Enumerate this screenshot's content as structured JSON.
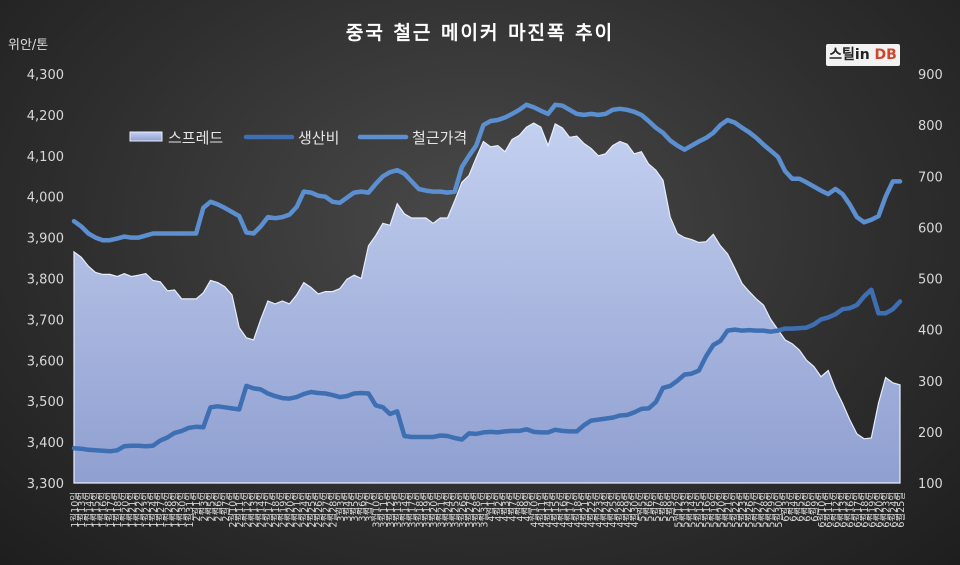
{
  "chart_data": {
    "type": "line",
    "title": "중국 철근 메이커 마진폭 추이",
    "ylabel": "위안/톤",
    "logo": {
      "text1": "스틸in ",
      "text2": "DB"
    },
    "y_left": {
      "min": 3300,
      "max": 4300,
      "step": 100
    },
    "y_right": {
      "min": 100,
      "max": 900,
      "step": 100
    },
    "legend_position": "upper-left",
    "grid": false,
    "colors": {
      "spread": "#aab9e3",
      "cost": "#3f6fb3",
      "price": "#5b8fd0",
      "text": "#d8d8d8"
    },
    "x": [
      "1월10일",
      "1월13일",
      "1월14일",
      "1월15일",
      "1월16일",
      "1월17일",
      "1월18일",
      "1월20일",
      "1월21일",
      "1월22일",
      "1월23일",
      "1월24일",
      "1월27일",
      "1월28일",
      "1월29일",
      "1월30일",
      "1월31일",
      "2월1일",
      "2월3일",
      "2월5일",
      "2월6일",
      "2월7일",
      "2월10일",
      "2월11일",
      "2월12일",
      "2월13일",
      "2월14일",
      "2월17일",
      "2월18일",
      "2월19일",
      "2월20일",
      "2월21일",
      "2월24일",
      "2월25일",
      "2월26일",
      "2월27일",
      "2월28일",
      "3월3일",
      "3월4일",
      "3월5일",
      "3월6일",
      "3월7일",
      "3월10일",
      "3월11일",
      "3월12일",
      "3월13일",
      "3월14일",
      "3월17일",
      "3월18일",
      "3월19일",
      "3월20일",
      "3월21일",
      "3월24일",
      "3월25일",
      "3월26일",
      "3월27일",
      "3월28일",
      "3월31일",
      "4월1일",
      "4월2일",
      "4월3일",
      "4월7일",
      "4월8일",
      "4월9일",
      "4월10일",
      "4월11일",
      "4월14일",
      "4월15일",
      "4월16일",
      "4월17일",
      "4월18일",
      "4월21일",
      "4월22일",
      "4월23일",
      "4월24일",
      "4월25일",
      "4월28일",
      "4월29일",
      "4월30일",
      "5월5일",
      "5월6일",
      "5월7일",
      "5월8일",
      "5월9일",
      "5월12일",
      "5월13일",
      "5월14일",
      "5월15일",
      "5월16일",
      "5월19일",
      "5월20일",
      "5월21일",
      "5월22일",
      "5월23일",
      "5월26일",
      "5월27일",
      "5월28일",
      "5월29일",
      "5월30일",
      "6월3일",
      "6월4일",
      "6월5일",
      "6월6일",
      "6월9일",
      "6월10일",
      "6월11일",
      "6월12일",
      "6월13일",
      "6월16일",
      "6월17일",
      "6월18일",
      "6월19일",
      "6월20일",
      "6월23일",
      "6월24일",
      "6월25일"
    ],
    "series": [
      {
        "name": "스프레드",
        "axis": "left",
        "style": "area",
        "values": [
          3865,
          3852,
          3830,
          3815,
          3810,
          3810,
          3805,
          3812,
          3805,
          3808,
          3812,
          3795,
          3792,
          3770,
          3772,
          3750,
          3750,
          3750,
          3765,
          3795,
          3790,
          3780,
          3760,
          3680,
          3655,
          3650,
          3700,
          3745,
          3738,
          3745,
          3738,
          3760,
          3790,
          3778,
          3762,
          3768,
          3768,
          3775,
          3798,
          3808,
          3800,
          3880,
          3905,
          3935,
          3930,
          3983,
          3958,
          3948,
          3948,
          3948,
          3935,
          3948,
          3948,
          3990,
          4035,
          4052,
          4095,
          4135,
          4122,
          4125,
          4110,
          4140,
          4150,
          4170,
          4180,
          4170,
          4125,
          4178,
          4168,
          4145,
          4148,
          4130,
          4118,
          4100,
          4105,
          4125,
          4135,
          4128,
          4105,
          4110,
          4080,
          4065,
          4040,
          3950,
          3910,
          3900,
          3895,
          3888,
          3890,
          3908,
          3880,
          3860,
          3825,
          3788,
          3768,
          3750,
          3735,
          3700,
          3675,
          3650,
          3640,
          3625,
          3600,
          3585,
          3560,
          3575,
          3530,
          3495,
          3455,
          3420,
          3408,
          3410,
          3495,
          3558,
          3545,
          3540
        ]
      },
      {
        "name": "생산비",
        "axis": "right",
        "style": "line",
        "values": [
          168,
          167,
          165,
          164,
          163,
          162,
          164,
          172,
          173,
          173,
          172,
          173,
          183,
          189,
          198,
          202,
          208,
          210,
          209,
          248,
          250,
          248,
          246,
          244,
          290,
          285,
          283,
          275,
          270,
          266,
          265,
          268,
          274,
          278,
          276,
          275,
          272,
          268,
          270,
          275,
          276,
          275,
          252,
          248,
          235,
          240,
          192,
          190,
          190,
          190,
          190,
          193,
          192,
          188,
          185,
          197,
          196,
          199,
          200,
          199,
          201,
          202,
          202,
          205,
          200,
          199,
          199,
          204,
          202,
          201,
          201,
          213,
          222,
          224,
          226,
          228,
          232,
          233,
          238,
          245,
          246,
          258,
          286,
          290,
          300,
          312,
          314,
          320,
          348,
          370,
          378,
          398,
          400,
          398,
          399,
          398,
          398,
          396,
          398,
          402,
          402,
          403,
          404,
          410,
          420,
          424,
          430,
          440,
          442,
          448,
          465,
          478,
          432,
          432,
          440,
          455
        ]
      },
      {
        "name": "철근가격",
        "axis": "right",
        "style": "line",
        "values": [
          612,
          602,
          588,
          580,
          575,
          575,
          578,
          582,
          580,
          580,
          584,
          588,
          588,
          588,
          588,
          588,
          588,
          588,
          638,
          650,
          645,
          638,
          630,
          622,
          590,
          588,
          602,
          620,
          618,
          620,
          625,
          640,
          670,
          668,
          662,
          660,
          650,
          648,
          658,
          668,
          670,
          668,
          685,
          700,
          708,
          712,
          705,
          690,
          675,
          672,
          670,
          670,
          668,
          670,
          718,
          740,
          760,
          800,
          808,
          810,
          815,
          822,
          830,
          840,
          835,
          828,
          822,
          840,
          838,
          830,
          822,
          820,
          822,
          820,
          822,
          830,
          832,
          830,
          826,
          820,
          808,
          795,
          785,
          770,
          760,
          752,
          760,
          768,
          775,
          785,
          800,
          810,
          805,
          795,
          786,
          775,
          762,
          750,
          738,
          710,
          695,
          695,
          688,
          680,
          672,
          665,
          675,
          665,
          645,
          620,
          610,
          615,
          622,
          660,
          690,
          690
        ]
      }
    ]
  }
}
